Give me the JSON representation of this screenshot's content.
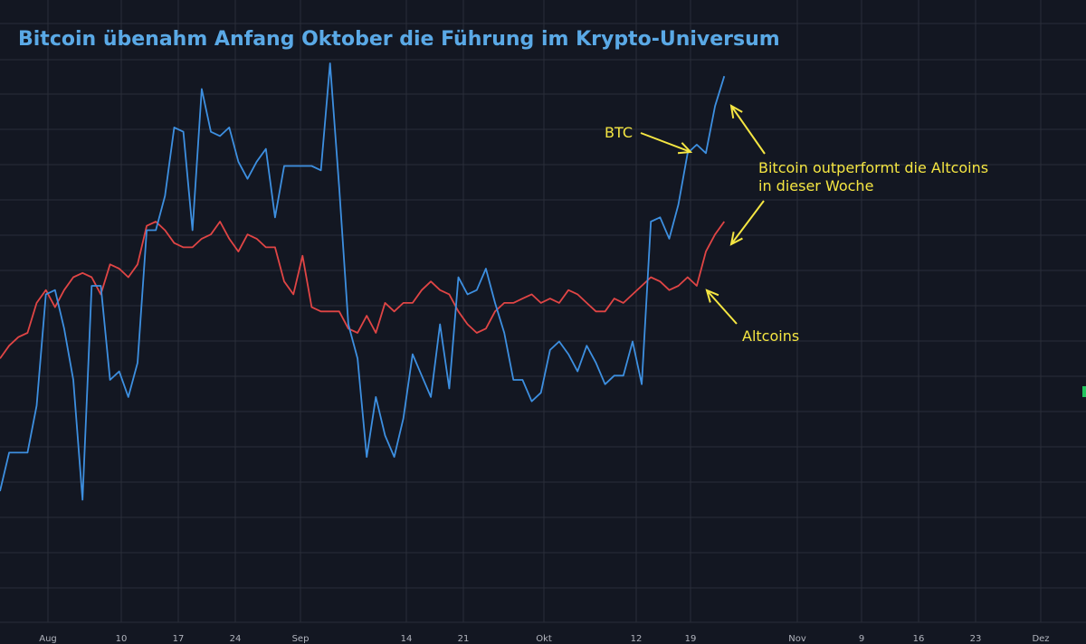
{
  "chart_data": {
    "type": "line",
    "title": "Bitcoin übenahm Anfang Oktober die Führung im Krypto-Universum",
    "x_ticks": [
      "Aug",
      "10",
      "17",
      "24",
      "Sep",
      "14",
      "21",
      "Okt",
      "12",
      "19",
      "Nov",
      "9",
      "16",
      "23",
      "Dez"
    ],
    "grid": true,
    "series": [
      {
        "name": "BTC",
        "color": "#3d8fe0",
        "values": [
          -3.1,
          -2.2,
          -2.2,
          -2.2,
          -1.1,
          1.5,
          1.6,
          0.7,
          -0.5,
          -3.3,
          1.7,
          1.7,
          -0.5,
          -0.3,
          -0.9,
          -0.1,
          3.0,
          3.0,
          3.8,
          5.4,
          5.3,
          3.0,
          6.3,
          5.3,
          5.2,
          5.4,
          4.6,
          4.2,
          4.6,
          4.9,
          3.3,
          4.5,
          4.5,
          4.5,
          4.5,
          4.4,
          6.9,
          4.0,
          0.8,
          0.0,
          -2.3,
          -0.9,
          -1.8,
          -2.3,
          -1.4,
          0.1,
          -0.4,
          -0.9,
          0.8,
          -0.7,
          1.9,
          1.5,
          1.6,
          2.1,
          1.3,
          0.6,
          -0.5,
          -0.5,
          -1.0,
          -0.8,
          0.2,
          0.4,
          0.1,
          -0.3,
          0.3,
          -0.1,
          -0.6,
          -0.4,
          -0.4,
          0.4,
          -0.6,
          3.2,
          3.3,
          2.8,
          3.6,
          4.8,
          5.0,
          4.8,
          5.9,
          6.6
        ],
        "label": "BTC"
      },
      {
        "name": "Altcoins",
        "color": "#e04545",
        "values": [
          0.0,
          0.3,
          0.5,
          0.6,
          1.3,
          1.6,
          1.2,
          1.6,
          1.9,
          2.0,
          1.9,
          1.5,
          2.2,
          2.1,
          1.9,
          2.2,
          3.1,
          3.2,
          3.0,
          2.7,
          2.6,
          2.6,
          2.8,
          2.9,
          3.2,
          2.8,
          2.5,
          2.9,
          2.8,
          2.6,
          2.6,
          1.8,
          1.5,
          2.4,
          1.2,
          1.1,
          1.1,
          1.1,
          0.7,
          0.6,
          1.0,
          0.6,
          1.3,
          1.1,
          1.3,
          1.3,
          1.6,
          1.8,
          1.6,
          1.5,
          1.1,
          0.8,
          0.6,
          0.7,
          1.1,
          1.3,
          1.3,
          1.4,
          1.5,
          1.3,
          1.4,
          1.3,
          1.6,
          1.5,
          1.3,
          1.1,
          1.1,
          1.4,
          1.3,
          1.5,
          1.7,
          1.9,
          1.8,
          1.6,
          1.7,
          1.9,
          1.7,
          2.5,
          2.9,
          3.2
        ],
        "label": "Altcoins"
      }
    ],
    "annotations": [
      {
        "id": "btc",
        "text": "BTC"
      },
      {
        "id": "outperform",
        "lines": [
          "Bitcoin outperformt die Altcoins",
          "in dieser Woche"
        ]
      },
      {
        "id": "alt",
        "text": "Altcoins"
      }
    ]
  }
}
